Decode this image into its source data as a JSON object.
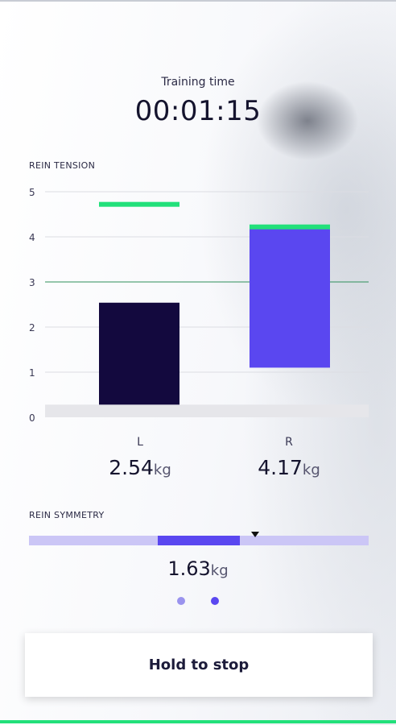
{
  "timer": {
    "label": "Training time",
    "value": "00:01:15"
  },
  "rein_tension": {
    "title": "REIN TENSION",
    "left": {
      "label": "L",
      "value": "2.54",
      "unit": "kg"
    },
    "right": {
      "label": "R",
      "value": "4.17",
      "unit": "kg"
    }
  },
  "chart_data": {
    "type": "bar",
    "title": "REIN TENSION",
    "categories": [
      "L",
      "R"
    ],
    "yticks": [
      "0",
      "1",
      "2",
      "3",
      "4",
      "5"
    ],
    "ylim": [
      0,
      5
    ],
    "bars": [
      {
        "category": "L",
        "low": 0.28,
        "high": 2.54,
        "color": "#13093e"
      },
      {
        "category": "R",
        "low": 1.1,
        "high": 4.17,
        "color": "#5a47f0"
      }
    ],
    "peak_markers": [
      {
        "category": "L",
        "value": 4.72
      },
      {
        "category": "R",
        "value": 4.22
      }
    ],
    "reference_line": 3,
    "colors": {
      "peak": "#22e07a",
      "reference": "#2e8f5a",
      "grid": "#dcdde3",
      "baseline_band": "#e6e6ea"
    },
    "grid": true
  },
  "symmetry": {
    "title": "REIN SYMMETRY",
    "value": "1.63",
    "unit": "kg",
    "range": [
      -1,
      1
    ],
    "fill_start": -0.24,
    "fill_end": 0.24,
    "marker": 0.33,
    "colors": {
      "track": "#cbc6f6",
      "fill": "#5a47f0",
      "marker": "#111111"
    }
  },
  "pagination": {
    "count": 2,
    "active": 1
  },
  "stop_button": {
    "label": "Hold to stop"
  },
  "colors": {
    "accent": "#5a47f0",
    "success": "#22e07a",
    "dark": "#13093e"
  }
}
